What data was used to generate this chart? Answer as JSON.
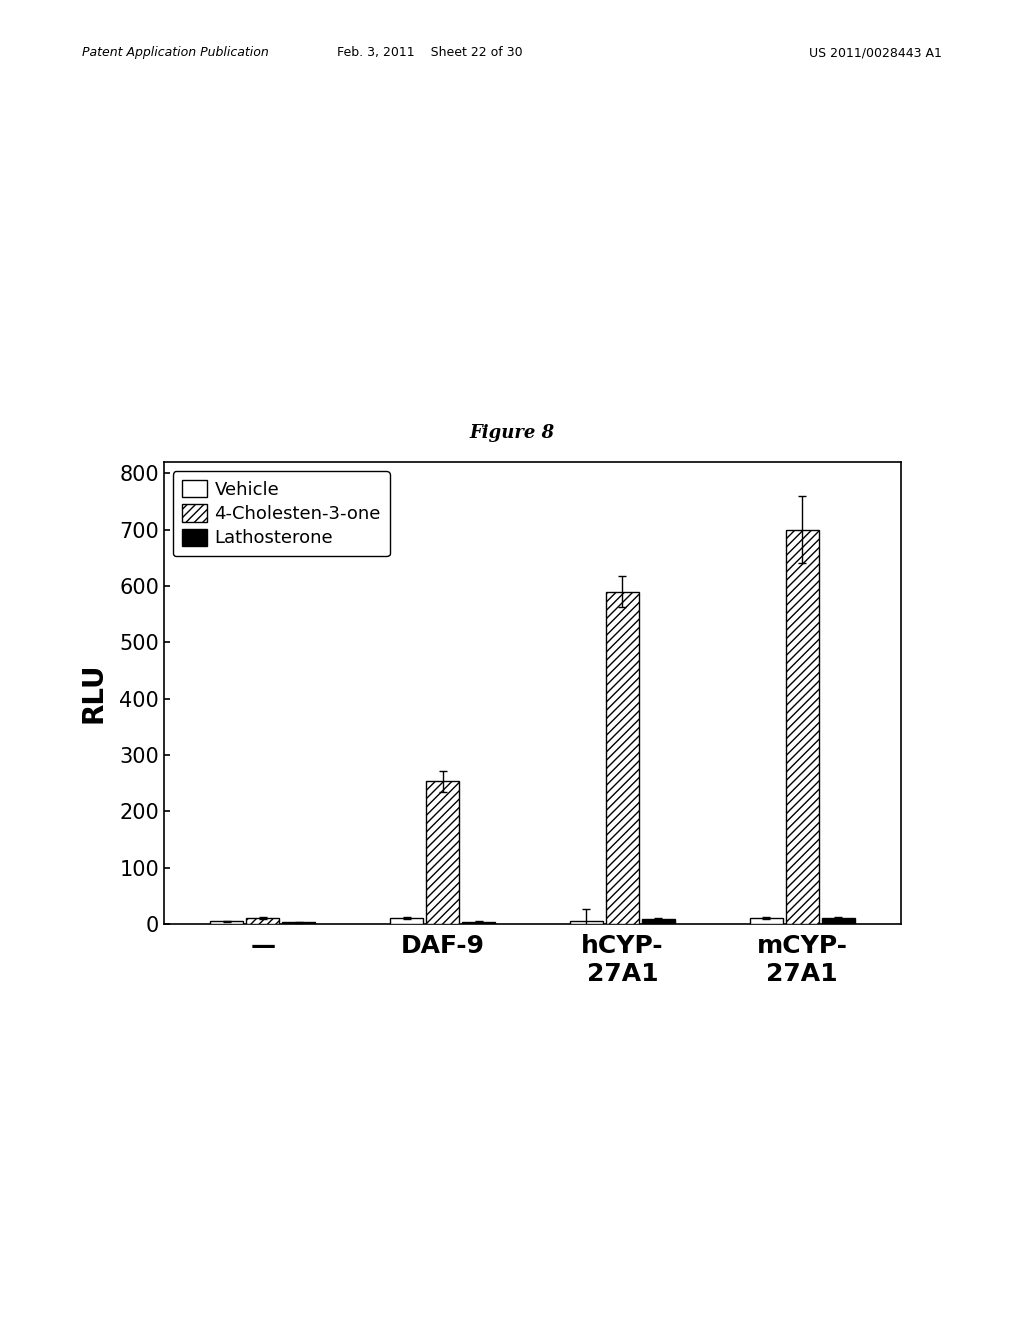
{
  "title": "Figure 8",
  "ylabel": "RLU",
  "groups": [
    "—",
    "DAF-9",
    "hCYP-\n27A1",
    "mCYP-\n27A1"
  ],
  "series": [
    "Vehicle",
    "4-Cholesten-3-one",
    "Lathosterone"
  ],
  "values": [
    [
      5,
      10,
      3
    ],
    [
      10,
      253,
      4
    ],
    [
      5,
      590,
      8
    ],
    [
      10,
      700,
      10
    ]
  ],
  "errors": [
    [
      1,
      2,
      1
    ],
    [
      2,
      18,
      1
    ],
    [
      22,
      28,
      2
    ],
    [
      2,
      60,
      2
    ]
  ],
  "ylim": [
    0,
    820
  ],
  "yticks": [
    0,
    100,
    200,
    300,
    400,
    500,
    600,
    700,
    800
  ],
  "bar_width": 0.2,
  "background_color": "#ffffff",
  "tick_fontsize": 15,
  "legend_fontsize": 13,
  "ylabel_fontsize": 20,
  "xlabel_fontsize": 18,
  "header_left": "Patent Application Publication",
  "header_mid": "Feb. 3, 2011    Sheet 22 of 30",
  "header_right": "US 2011/0028443 A1"
}
